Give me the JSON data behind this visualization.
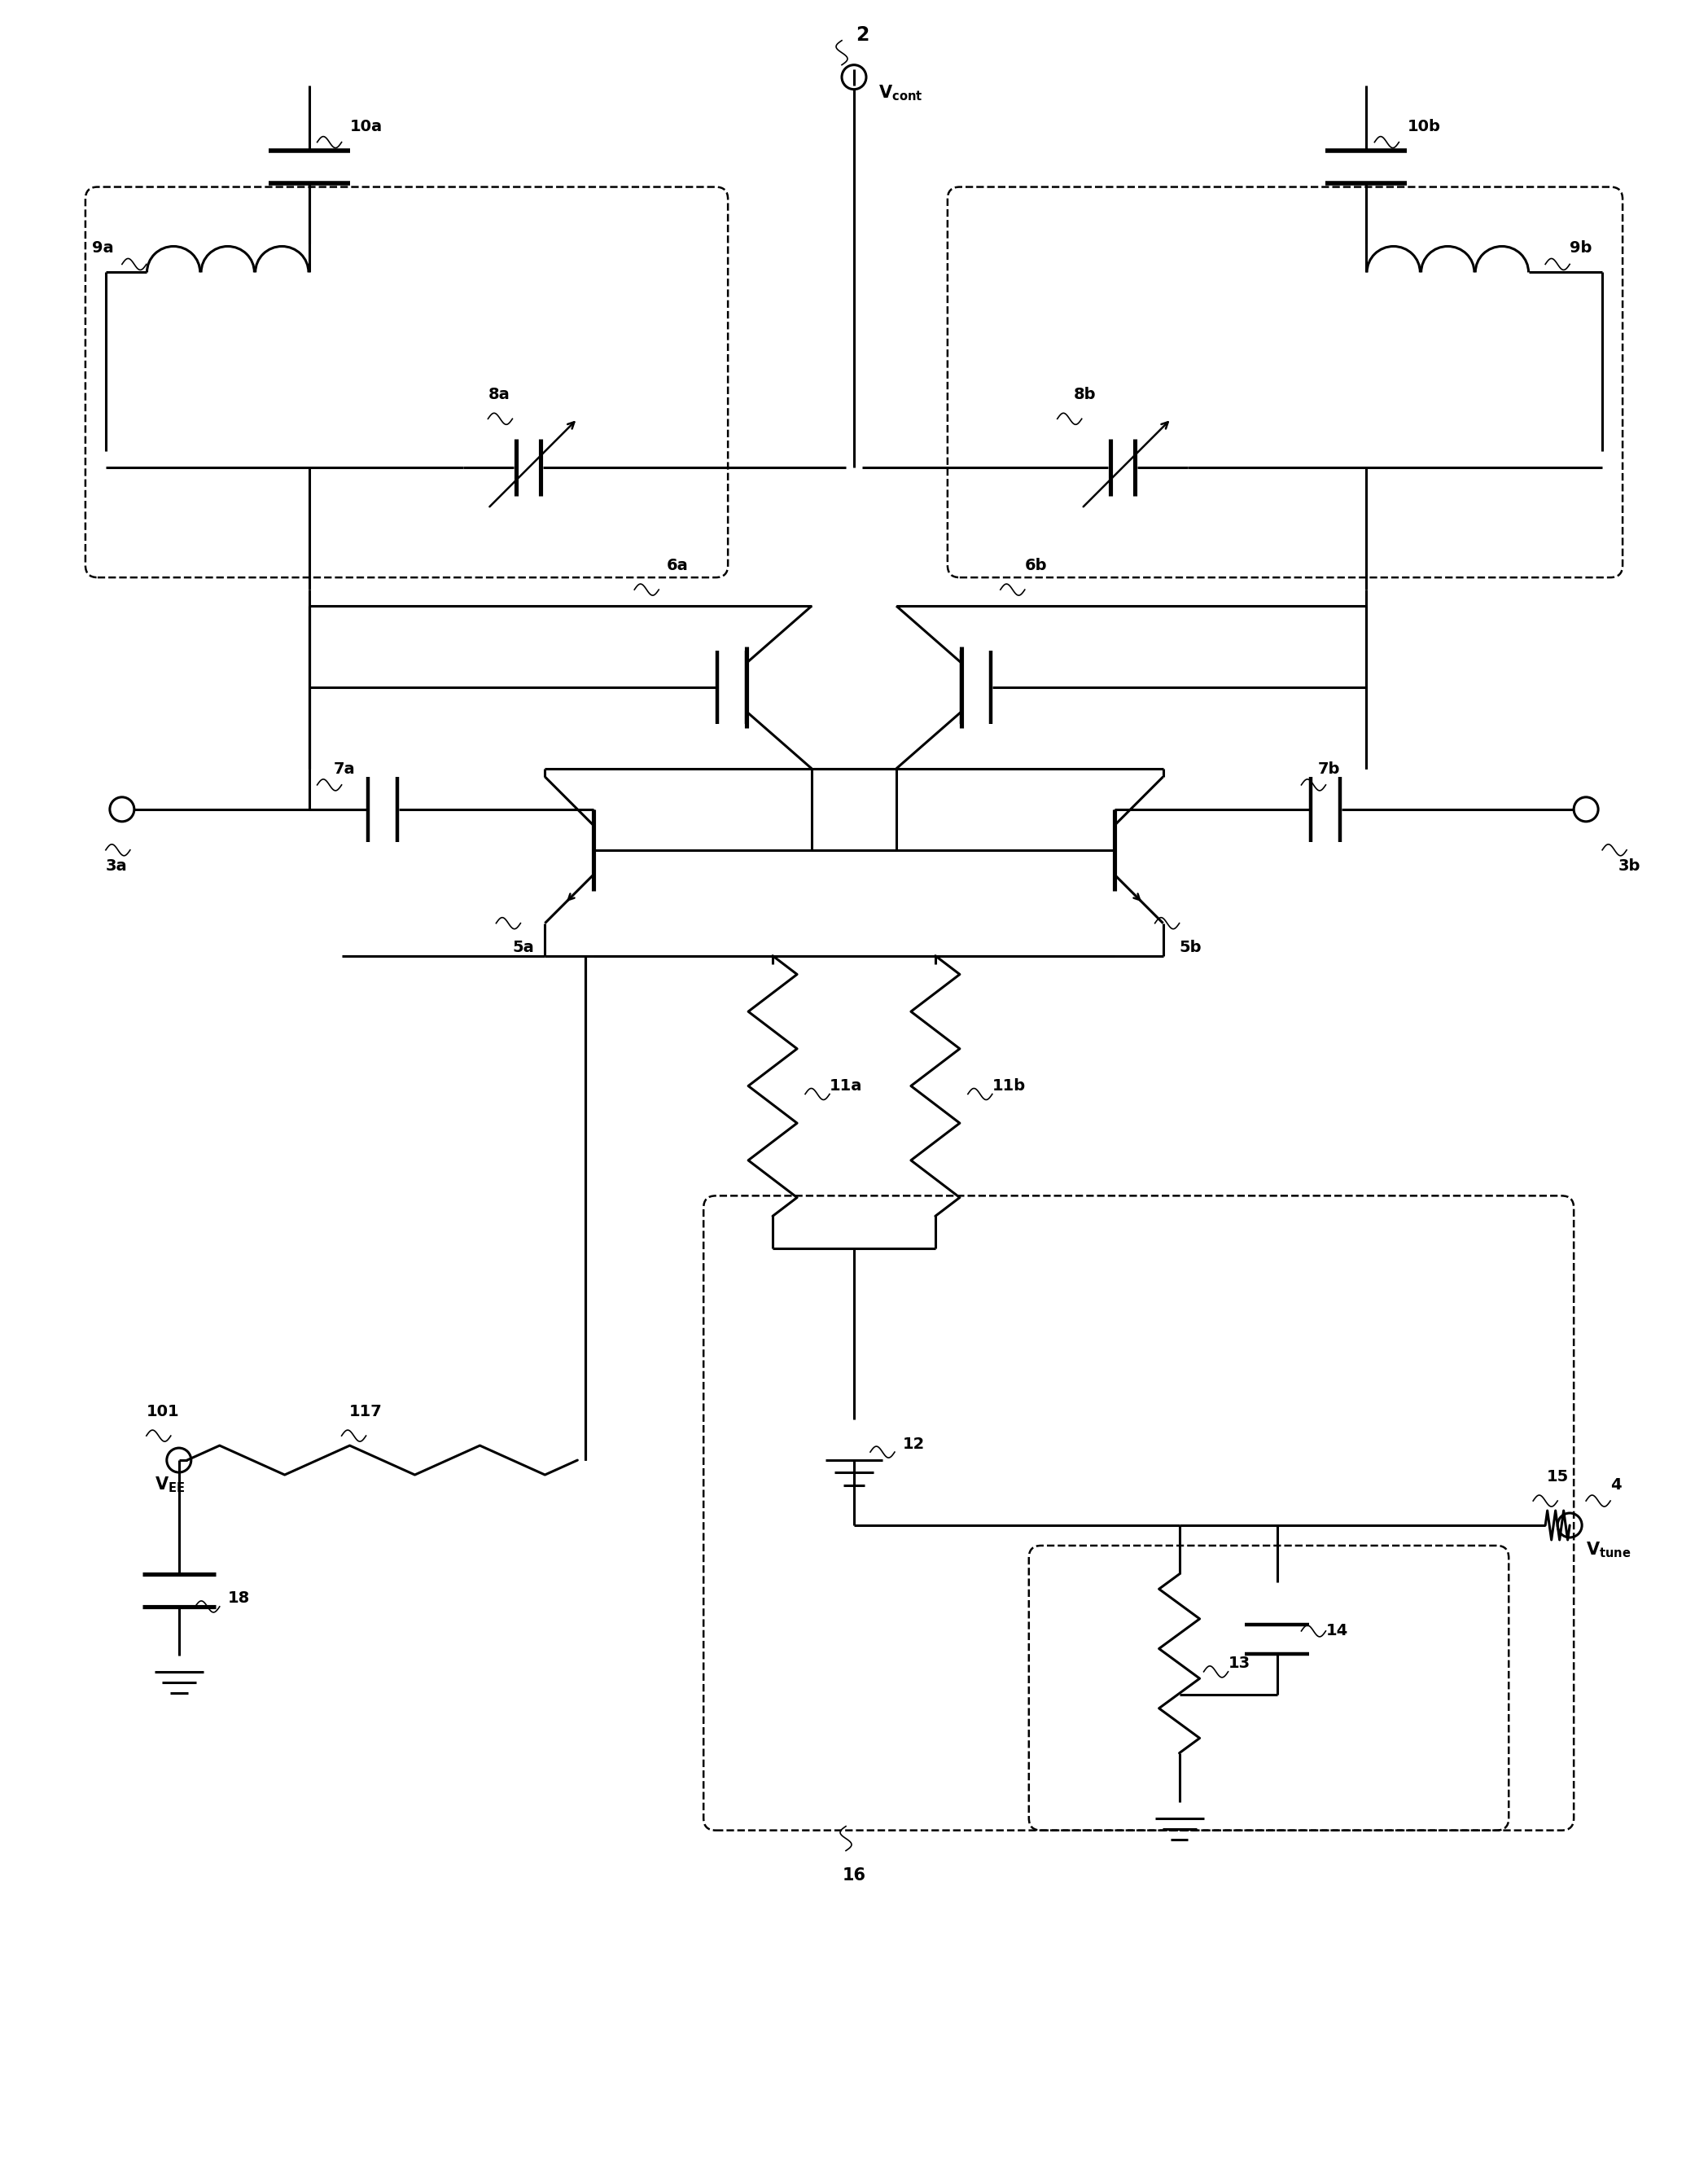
{
  "figure_width": 20.98,
  "figure_height": 26.77,
  "bg_color": "#ffffff",
  "lc": "#000000",
  "lw": 2.2,
  "dlw": 1.8,
  "font_size": 14,
  "labels": {
    "vcont": "V$_\\mathbf{cont}$",
    "vtune": "V$_\\mathbf{tune}$",
    "vee": "V$_\\mathbf{EE}$",
    "2": "2",
    "4": "4",
    "3a": "3a",
    "3b": "3b",
    "5a": "5a",
    "5b": "5b",
    "6a": "6a",
    "6b": "6b",
    "7a": "7a",
    "7b": "7b",
    "8a": "8a",
    "8b": "8b",
    "9a": "9a",
    "9b": "9b",
    "10a": "10a",
    "10b": "10b",
    "11a": "11a",
    "11b": "11b",
    "12": "12",
    "13": "13",
    "14": "14",
    "15": "15",
    "16": "16",
    "18": "18",
    "101": "101",
    "117": "117"
  }
}
